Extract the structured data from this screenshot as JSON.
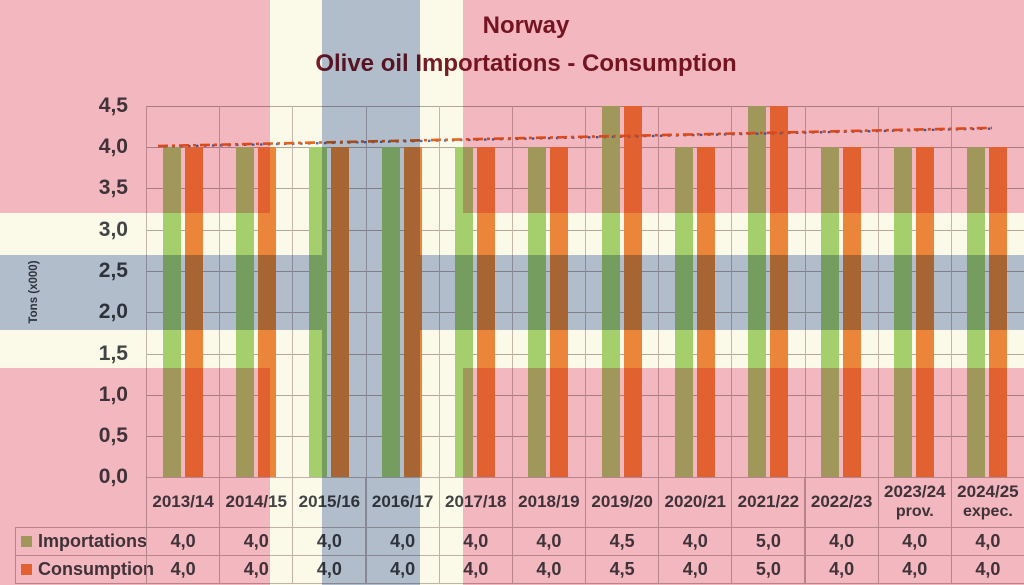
{
  "title": {
    "country": "Norway",
    "subject": "Olive oil Importations - Consumption"
  },
  "y_axis": {
    "label": "Tons (x000)",
    "ticks": [
      "4,5",
      "4,0",
      "3,5",
      "3,0",
      "2,5",
      "2,0",
      "1,5",
      "1,0",
      "0,5",
      "0,0"
    ]
  },
  "chart_data": {
    "type": "bar",
    "title": "Norway",
    "subtitle": "Olive oil Importations - Consumption",
    "xlabel": "",
    "ylabel": "Tons (x000)",
    "ylim": [
      0,
      4.5
    ],
    "ytick_step": 0.5,
    "grid": true,
    "legend_position": "bottom-table",
    "clip_note": "bars above 4.5 are clipped at the axis maximum",
    "categories": [
      "2013/14",
      "2014/15",
      "2015/16",
      "2016/17",
      "2017/18",
      "2018/19",
      "2019/20",
      "2020/21",
      "2021/22",
      "2022/23",
      "2023/24",
      "2024/25"
    ],
    "category_sublabels": [
      "",
      "",
      "",
      "",
      "",
      "",
      "",
      "",
      "",
      "",
      "prov.",
      "expec."
    ],
    "series": [
      {
        "name": "Importations",
        "color": "#A8D478",
        "values": [
          4.0,
          4.0,
          4.0,
          4.0,
          4.0,
          4.0,
          4.5,
          4.0,
          5.0,
          4.0,
          4.0,
          4.0
        ],
        "display": [
          "4,0",
          "4,0",
          "4,0",
          "4,0",
          "4,0",
          "4,0",
          "4,5",
          "4,0",
          "5,0",
          "4,0",
          "4,0",
          "4,0"
        ]
      },
      {
        "name": "Consumption",
        "color": "#EE8840",
        "values": [
          4.0,
          4.0,
          4.0,
          4.0,
          4.0,
          4.0,
          4.5,
          4.0,
          5.0,
          4.0,
          4.0,
          4.0
        ],
        "display": [
          "4,0",
          "4,0",
          "4,0",
          "4,0",
          "4,0",
          "4,0",
          "4,5",
          "4,0",
          "5,0",
          "4,0",
          "4,0",
          "4,0"
        ]
      }
    ],
    "trendlines": [
      {
        "series": "Importations",
        "type": "linear",
        "color": "#4472C4",
        "style": "dotted"
      },
      {
        "series": "Consumption",
        "type": "linear",
        "color": "#E8651F",
        "style": "dash-dot"
      }
    ]
  },
  "flag": {
    "name": "Norway flag background",
    "pink": "#F2B7BF",
    "cream": "#FBF9E8",
    "blue": "#B2BDCB"
  },
  "colors": {
    "title_text": "#7A1B2B",
    "body_text": "#42454A",
    "gridline": "#B5ABAD",
    "grid_vertical": "#C6BCBE",
    "axis_line": "#A39A9C",
    "table_border": "#C2B8BA"
  }
}
